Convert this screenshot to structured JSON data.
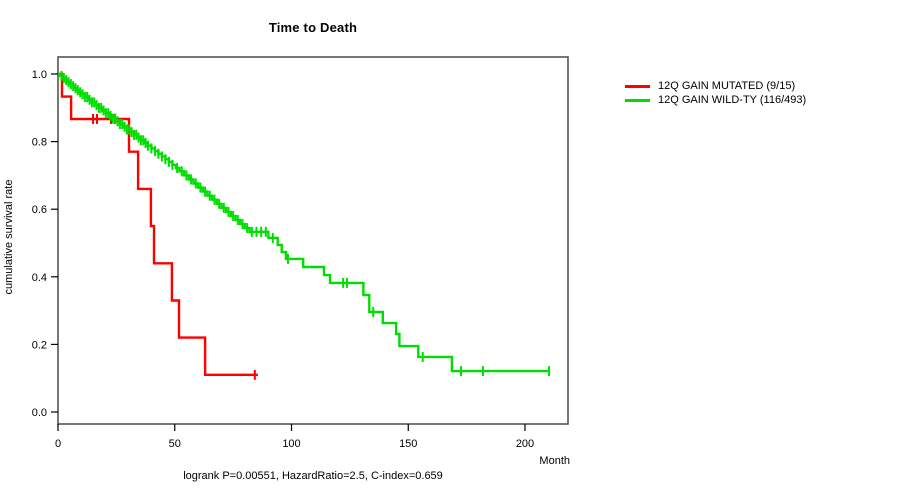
{
  "chart_data": {
    "type": "line",
    "subtype": "kaplan-meier-step",
    "title": "Time to Death",
    "xlabel": "Month",
    "ylabel": "cumulative survival rate",
    "footer": "logrank P=0.00551, HazardRatio=2.5, C-index=0.659",
    "x_ticks": [
      0,
      50,
      100,
      150,
      200
    ],
    "x_tick_labels": [
      "0",
      "50",
      "100",
      "150",
      "200"
    ],
    "y_ticks": [
      0.0,
      0.2,
      0.4,
      0.6,
      0.8,
      1.0
    ],
    "y_tick_labels": [
      "0.0",
      "0.2",
      "0.4",
      "0.6",
      "0.8",
      "1.0"
    ],
    "xlim": [
      0,
      218
    ],
    "ylim": [
      0.0,
      1.0
    ],
    "grid": false,
    "legend_position": "right-outside",
    "series": [
      {
        "name": "12Q GAIN MUTATED (9/15)",
        "color": "#ff0000",
        "points": [
          [
            0,
            1.0
          ],
          [
            1.7,
            0.933
          ],
          [
            5.6,
            0.867
          ],
          [
            30.4,
            0.77
          ],
          [
            34.3,
            0.66
          ],
          [
            39.8,
            0.55
          ],
          [
            41.1,
            0.44
          ],
          [
            48.8,
            0.33
          ],
          [
            51.8,
            0.22
          ],
          [
            63.0,
            0.11
          ],
          [
            85.6,
            0.11
          ]
        ],
        "censor_months": [
          15.0,
          16.7,
          22.7,
          24.4,
          84.3
        ]
      },
      {
        "name": "12Q GAIN WILD-TY (116/493)",
        "color": "#00dd00",
        "points": [
          [
            0,
            1.0
          ],
          [
            1,
            0.994
          ],
          [
            2,
            0.988
          ],
          [
            3,
            0.982
          ],
          [
            4,
            0.976
          ],
          [
            5,
            0.97
          ],
          [
            6,
            0.964
          ],
          [
            7,
            0.958
          ],
          [
            8,
            0.952
          ],
          [
            9,
            0.946
          ],
          [
            10,
            0.94
          ],
          [
            11.5,
            0.932
          ],
          [
            13,
            0.924
          ],
          [
            14.5,
            0.916
          ],
          [
            16,
            0.908
          ],
          [
            17.5,
            0.9
          ],
          [
            19,
            0.892
          ],
          [
            20.5,
            0.884
          ],
          [
            22,
            0.876
          ],
          [
            23.5,
            0.868
          ],
          [
            25,
            0.86
          ],
          [
            26.5,
            0.852
          ],
          [
            28,
            0.844
          ],
          [
            29.5,
            0.836
          ],
          [
            31,
            0.828
          ],
          [
            32.5,
            0.82
          ],
          [
            34,
            0.812
          ],
          [
            35.5,
            0.804
          ],
          [
            37,
            0.796
          ],
          [
            38.5,
            0.788
          ],
          [
            40,
            0.78
          ],
          [
            41.5,
            0.772
          ],
          [
            43,
            0.764
          ],
          [
            44.5,
            0.756
          ],
          [
            46,
            0.748
          ],
          [
            47.5,
            0.74
          ],
          [
            49,
            0.731
          ],
          [
            50.5,
            0.722
          ],
          [
            52,
            0.712
          ],
          [
            54,
            0.7
          ],
          [
            56,
            0.688
          ],
          [
            58,
            0.676
          ],
          [
            60,
            0.664
          ],
          [
            62,
            0.652
          ],
          [
            64,
            0.64
          ],
          [
            66,
            0.628
          ],
          [
            68,
            0.616
          ],
          [
            70,
            0.604
          ],
          [
            72,
            0.592
          ],
          [
            74,
            0.58
          ],
          [
            76,
            0.568
          ],
          [
            78,
            0.556
          ],
          [
            80,
            0.544
          ],
          [
            82,
            0.533
          ],
          [
            90.1,
            0.515
          ],
          [
            94.1,
            0.494
          ],
          [
            95.8,
            0.473
          ],
          [
            97.6,
            0.453
          ],
          [
            105,
            0.429
          ],
          [
            113.9,
            0.405
          ],
          [
            116.5,
            0.382
          ],
          [
            130.8,
            0.346
          ],
          [
            133.3,
            0.296
          ],
          [
            139.1,
            0.263
          ],
          [
            144.8,
            0.231
          ],
          [
            146.2,
            0.195
          ],
          [
            154.3,
            0.163
          ],
          [
            168.7,
            0.121
          ],
          [
            210.7,
            0.121
          ]
        ],
        "censor_months": [
          1.5,
          2.5,
          3.5,
          4.5,
          5.5,
          6.5,
          7.5,
          8.5,
          9.5,
          10.5,
          11.5,
          12.5,
          13.5,
          14.5,
          15.5,
          16.5,
          17.5,
          18.5,
          19.5,
          20.5,
          21.5,
          22.5,
          23.5,
          24.5,
          25.5,
          26.5,
          27.5,
          28.5,
          29.5,
          30.5,
          31.5,
          32.5,
          33.5,
          34.5,
          35.5,
          36.5,
          37.5,
          38.5,
          40,
          41.5,
          43,
          44.5,
          46,
          47.5,
          49,
          51,
          53,
          55,
          57,
          59,
          61,
          63,
          65,
          67,
          69,
          71,
          73,
          75,
          77,
          79,
          81,
          83,
          85,
          87,
          89,
          92,
          98.5,
          122.1,
          123.8,
          135,
          156.2,
          172.6,
          182,
          210.3
        ]
      }
    ]
  }
}
